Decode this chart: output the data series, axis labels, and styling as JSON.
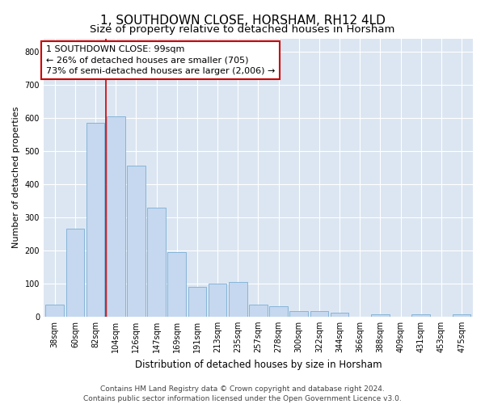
{
  "title": "1, SOUTHDOWN CLOSE, HORSHAM, RH12 4LD",
  "subtitle": "Size of property relative to detached houses in Horsham",
  "xlabel": "Distribution of detached houses by size in Horsham",
  "ylabel": "Number of detached properties",
  "categories": [
    "38sqm",
    "60sqm",
    "82sqm",
    "104sqm",
    "126sqm",
    "147sqm",
    "169sqm",
    "191sqm",
    "213sqm",
    "235sqm",
    "257sqm",
    "278sqm",
    "300sqm",
    "322sqm",
    "344sqm",
    "366sqm",
    "388sqm",
    "409sqm",
    "431sqm",
    "453sqm",
    "475sqm"
  ],
  "values": [
    35,
    265,
    585,
    605,
    455,
    330,
    195,
    90,
    100,
    105,
    35,
    32,
    17,
    16,
    12,
    0,
    6,
    0,
    8,
    0,
    7
  ],
  "bar_color": "#c5d8ef",
  "bar_edge_color": "#7aadd4",
  "vline_x": 2.5,
  "vline_color": "#cc0000",
  "annotation_text": "1 SOUTHDOWN CLOSE: 99sqm\n← 26% of detached houses are smaller (705)\n73% of semi-detached houses are larger (2,006) →",
  "annotation_box_color": "#ffffff",
  "annotation_box_edge": "#cc0000",
  "ylim": [
    0,
    840
  ],
  "yticks": [
    0,
    100,
    200,
    300,
    400,
    500,
    600,
    700,
    800
  ],
  "grid_color": "#ffffff",
  "background_color": "#dce6f2",
  "footer_line1": "Contains HM Land Registry data © Crown copyright and database right 2024.",
  "footer_line2": "Contains public sector information licensed under the Open Government Licence v3.0.",
  "title_fontsize": 11,
  "subtitle_fontsize": 9.5,
  "xlabel_fontsize": 8.5,
  "ylabel_fontsize": 8,
  "tick_fontsize": 7,
  "footer_fontsize": 6.5,
  "annot_fontsize": 8
}
